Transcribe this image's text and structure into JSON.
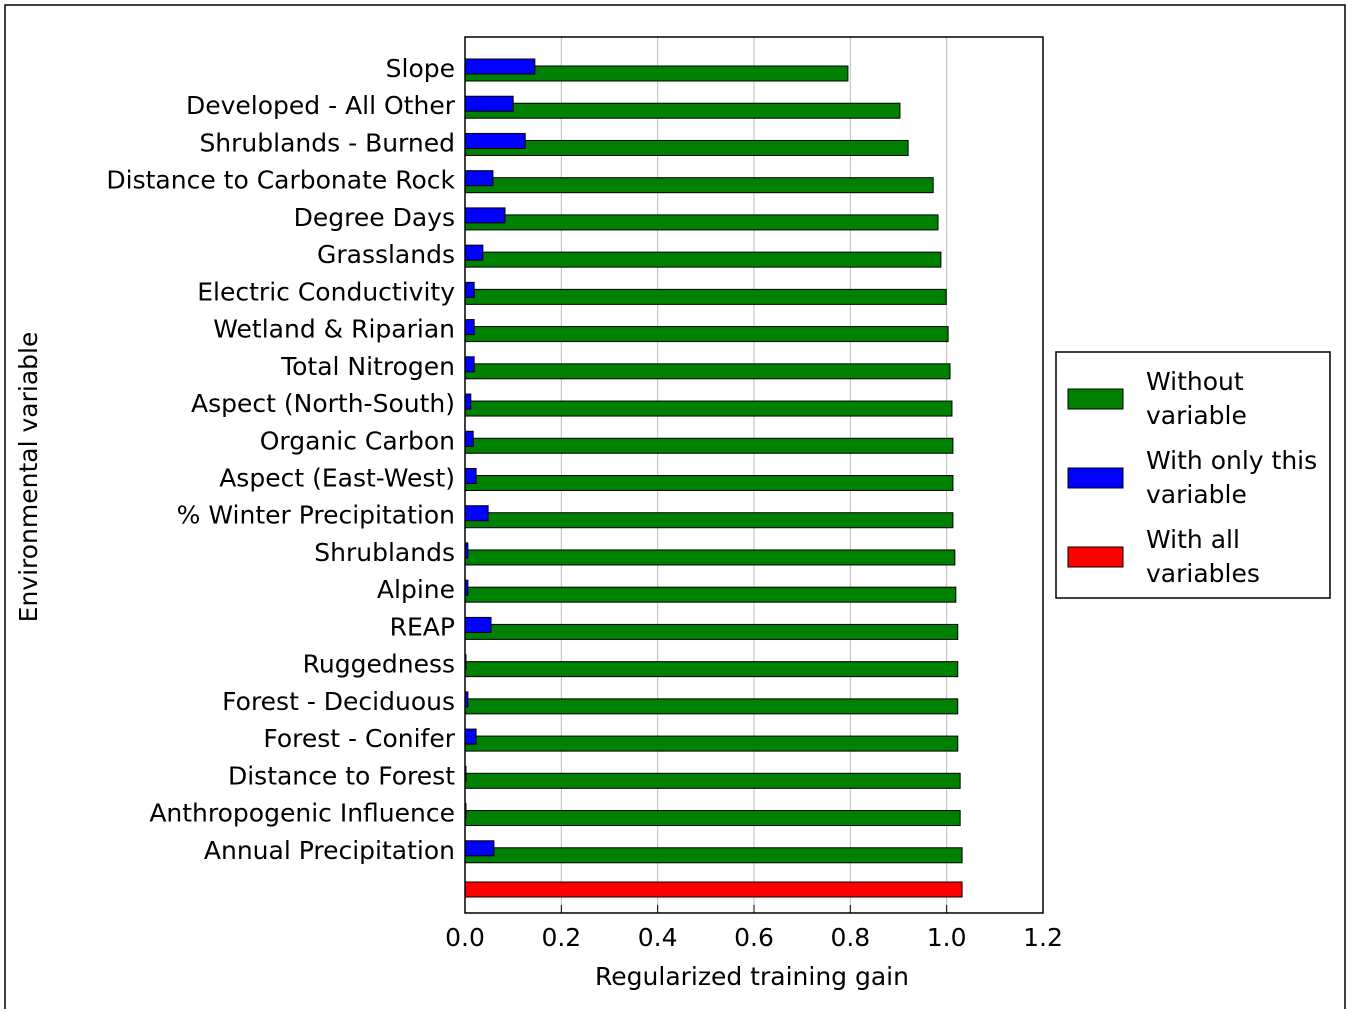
{
  "chart_data": {
    "type": "hbar",
    "x_label": "Regularized training gain",
    "y_label": "Environmental variable",
    "categories": [
      "Slope",
      "Developed - All Other",
      "Shrublands - Burned",
      "Distance to Carbonate Rock",
      "Degree Days",
      "Grasslands",
      "Electric Conductivity",
      "Wetland & Riparian",
      "Total Nitrogen",
      "Aspect (North-South)",
      "Organic Carbon",
      "Aspect (East-West)",
      "% Winter Precipitation",
      "Shrublands",
      "Alpine",
      "REAP",
      "Ruggedness",
      "Forest - Deciduous",
      "Forest - Conifer",
      "Distance to Forest",
      "Anthropogenic Influence",
      "Annual Precipitation",
      null
    ],
    "series": [
      {
        "name": "Without variable",
        "color": "#008000",
        "values": [
          0.795,
          0.903,
          0.92,
          0.972,
          0.982,
          0.988,
          0.999,
          1.003,
          1.007,
          1.011,
          1.013,
          1.013,
          1.013,
          1.017,
          1.019,
          1.023,
          1.023,
          1.023,
          1.023,
          1.028,
          1.028,
          1.032,
          null
        ]
      },
      {
        "name": "With only this variable",
        "color": "#0000ff",
        "values": [
          0.145,
          0.1,
          0.125,
          0.058,
          0.083,
          0.037,
          0.019,
          0.019,
          0.019,
          0.012,
          0.017,
          0.023,
          0.048,
          0.006,
          0.006,
          0.054,
          0.002,
          0.006,
          0.023,
          0.002,
          0.002,
          0.06,
          null
        ]
      },
      {
        "name": "With all variables",
        "color": "#ff0000",
        "values": [
          null,
          null,
          null,
          null,
          null,
          null,
          null,
          null,
          null,
          null,
          null,
          null,
          null,
          null,
          null,
          null,
          null,
          null,
          null,
          null,
          null,
          null,
          1.032
        ]
      }
    ],
    "xlim": [
      0,
      1.2
    ],
    "xticks": [
      {
        "value": 0,
        "label": "0.0"
      },
      {
        "value": 0.2,
        "label": "0.2"
      },
      {
        "value": 0.4,
        "label": "0.4"
      },
      {
        "value": 0.6,
        "label": "0.6"
      },
      {
        "value": 0.8,
        "label": "0.8"
      },
      {
        "value": 1,
        "label": "1.0"
      },
      {
        "value": 1.2,
        "label": "1.2"
      }
    ],
    "grid": true,
    "legend": "right"
  }
}
